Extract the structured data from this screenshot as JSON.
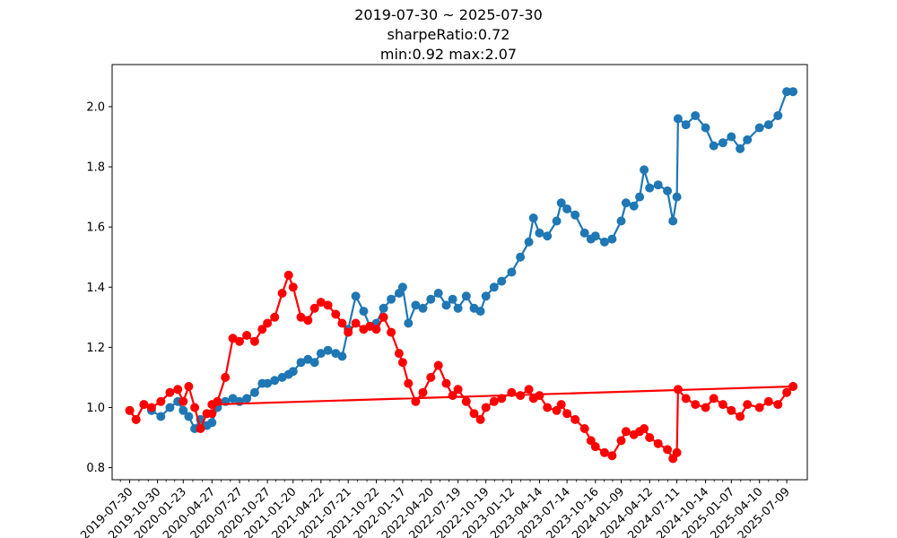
{
  "chart_data": {
    "type": "line",
    "title": "2019-07-30 ~ 2025-07-30",
    "subtitle_lines": [
      "sharpeRatio:0.72",
      "min:0.92 max:2.07"
    ],
    "xlabel": "",
    "ylabel": "",
    "x_type": "date",
    "xlim": [
      "2019-06-02",
      "2025-09-15"
    ],
    "ylim": [
      0.76,
      2.14
    ],
    "grid": false,
    "x_tick_labels": [
      "2019-07-30",
      "2019-10-30",
      "2020-01-23",
      "2020-04-27",
      "2020-07-27",
      "2020-10-27",
      "2021-01-20",
      "2021-04-22",
      "2021-07-21",
      "2021-10-22",
      "2022-01-17",
      "2022-04-20",
      "2022-07-19",
      "2022-10-19",
      "2023-01-12",
      "2023-04-14",
      "2023-07-14",
      "2023-10-16",
      "2024-01-09",
      "2024-04-12",
      "2024-07-11",
      "2024-10-14",
      "2025-01-07",
      "2025-04-10",
      "2025-07-09"
    ],
    "y_ticks": [
      0.8,
      1.0,
      1.2,
      1.4,
      1.6,
      1.8,
      2.0
    ],
    "y_tick_labels": [
      "0.8",
      "1.0",
      "1.2",
      "1.4",
      "1.6",
      "1.8",
      "2.0"
    ],
    "series": [
      {
        "color": "#1f77b4",
        "marker": "circle",
        "points": [
          [
            "2019-07-30",
            0.99
          ],
          [
            "2019-08-20",
            0.96
          ],
          [
            "2019-09-15",
            1.01
          ],
          [
            "2019-10-10",
            0.99
          ],
          [
            "2019-11-10",
            0.97
          ],
          [
            "2019-12-10",
            1.0
          ],
          [
            "2020-01-05",
            1.02
          ],
          [
            "2020-01-23",
            0.99
          ],
          [
            "2020-02-10",
            0.97
          ],
          [
            "2020-03-01",
            0.93
          ],
          [
            "2020-03-20",
            0.96
          ],
          [
            "2020-04-10",
            0.94
          ],
          [
            "2020-04-27",
            0.95
          ],
          [
            "2020-05-15",
            1.0
          ],
          [
            "2020-06-10",
            1.02
          ],
          [
            "2020-07-05",
            1.03
          ],
          [
            "2020-07-27",
            1.02
          ],
          [
            "2020-08-20",
            1.03
          ],
          [
            "2020-09-15",
            1.05
          ],
          [
            "2020-10-10",
            1.08
          ],
          [
            "2020-10-27",
            1.08
          ],
          [
            "2020-11-20",
            1.09
          ],
          [
            "2020-12-15",
            1.1
          ],
          [
            "2021-01-05",
            1.11
          ],
          [
            "2021-01-20",
            1.12
          ],
          [
            "2021-02-15",
            1.15
          ],
          [
            "2021-03-10",
            1.16
          ],
          [
            "2021-04-01",
            1.15
          ],
          [
            "2021-04-22",
            1.18
          ],
          [
            "2021-05-15",
            1.19
          ],
          [
            "2021-06-10",
            1.18
          ],
          [
            "2021-07-01",
            1.17
          ],
          [
            "2021-07-21",
            1.26
          ],
          [
            "2021-08-15",
            1.37
          ],
          [
            "2021-09-10",
            1.32
          ],
          [
            "2021-10-01",
            1.27
          ],
          [
            "2021-10-22",
            1.28
          ],
          [
            "2021-11-15",
            1.33
          ],
          [
            "2021-12-10",
            1.36
          ],
          [
            "2022-01-05",
            1.38
          ],
          [
            "2022-01-17",
            1.4
          ],
          [
            "2022-02-05",
            1.28
          ],
          [
            "2022-03-01",
            1.34
          ],
          [
            "2022-03-25",
            1.33
          ],
          [
            "2022-04-20",
            1.36
          ],
          [
            "2022-05-15",
            1.38
          ],
          [
            "2022-06-10",
            1.34
          ],
          [
            "2022-07-01",
            1.36
          ],
          [
            "2022-07-19",
            1.33
          ],
          [
            "2022-08-15",
            1.37
          ],
          [
            "2022-09-10",
            1.33
          ],
          [
            "2022-10-01",
            1.32
          ],
          [
            "2022-10-19",
            1.37
          ],
          [
            "2022-11-15",
            1.4
          ],
          [
            "2022-12-10",
            1.42
          ],
          [
            "2023-01-12",
            1.45
          ],
          [
            "2023-02-10",
            1.5
          ],
          [
            "2023-03-10",
            1.55
          ],
          [
            "2023-03-25",
            1.63
          ],
          [
            "2023-04-14",
            1.58
          ],
          [
            "2023-05-10",
            1.57
          ],
          [
            "2023-06-10",
            1.62
          ],
          [
            "2023-06-25",
            1.68
          ],
          [
            "2023-07-14",
            1.66
          ],
          [
            "2023-08-10",
            1.64
          ],
          [
            "2023-09-10",
            1.58
          ],
          [
            "2023-10-01",
            1.56
          ],
          [
            "2023-10-16",
            1.57
          ],
          [
            "2023-11-15",
            1.55
          ],
          [
            "2023-12-10",
            1.56
          ],
          [
            "2024-01-09",
            1.62
          ],
          [
            "2024-01-25",
            1.68
          ],
          [
            "2024-02-20",
            1.67
          ],
          [
            "2024-03-10",
            1.7
          ],
          [
            "2024-03-25",
            1.79
          ],
          [
            "2024-04-12",
            1.73
          ],
          [
            "2024-05-10",
            1.74
          ],
          [
            "2024-06-10",
            1.72
          ],
          [
            "2024-06-28",
            1.62
          ],
          [
            "2024-07-11",
            1.7
          ],
          [
            "2024-07-15",
            1.96
          ],
          [
            "2024-08-10",
            1.94
          ],
          [
            "2024-09-10",
            1.97
          ],
          [
            "2024-10-14",
            1.93
          ],
          [
            "2024-11-10",
            1.87
          ],
          [
            "2024-12-10",
            1.88
          ],
          [
            "2025-01-07",
            1.9
          ],
          [
            "2025-02-05",
            1.86
          ],
          [
            "2025-03-01",
            1.89
          ],
          [
            "2025-04-10",
            1.93
          ],
          [
            "2025-05-10",
            1.94
          ],
          [
            "2025-06-10",
            1.97
          ],
          [
            "2025-07-09",
            2.05
          ],
          [
            "2025-07-30",
            2.05
          ]
        ]
      },
      {
        "color": "#ff0000",
        "marker": "circle",
        "points": [
          [
            "2019-07-30",
            0.99
          ],
          [
            "2019-08-20",
            0.96
          ],
          [
            "2019-09-15",
            1.01
          ],
          [
            "2019-10-10",
            1.0
          ],
          [
            "2019-11-10",
            1.02
          ],
          [
            "2019-12-10",
            1.05
          ],
          [
            "2020-01-05",
            1.06
          ],
          [
            "2020-01-23",
            1.02
          ],
          [
            "2020-02-10",
            1.07
          ],
          [
            "2020-03-01",
            1.0
          ],
          [
            "2020-03-20",
            0.93
          ],
          [
            "2020-04-10",
            0.98
          ],
          [
            "2020-04-27",
            0.98
          ],
          [
            "2020-05-15",
            1.02
          ],
          [
            "2020-06-10",
            1.1
          ],
          [
            "2020-07-05",
            1.23
          ],
          [
            "2020-07-27",
            1.22
          ],
          [
            "2020-08-20",
            1.24
          ],
          [
            "2020-09-15",
            1.22
          ],
          [
            "2020-10-10",
            1.26
          ],
          [
            "2020-10-27",
            1.28
          ],
          [
            "2020-11-20",
            1.3
          ],
          [
            "2020-12-15",
            1.38
          ],
          [
            "2021-01-05",
            1.44
          ],
          [
            "2021-01-20",
            1.4
          ],
          [
            "2021-02-15",
            1.3
          ],
          [
            "2021-03-10",
            1.29
          ],
          [
            "2021-04-01",
            1.33
          ],
          [
            "2021-04-22",
            1.35
          ],
          [
            "2021-05-15",
            1.34
          ],
          [
            "2021-06-10",
            1.31
          ],
          [
            "2021-07-01",
            1.28
          ],
          [
            "2021-07-21",
            1.25
          ],
          [
            "2021-08-15",
            1.28
          ],
          [
            "2021-09-10",
            1.26
          ],
          [
            "2021-10-01",
            1.27
          ],
          [
            "2021-10-22",
            1.26
          ],
          [
            "2021-11-15",
            1.3
          ],
          [
            "2021-12-10",
            1.25
          ],
          [
            "2022-01-05",
            1.18
          ],
          [
            "2022-01-17",
            1.15
          ],
          [
            "2022-02-05",
            1.08
          ],
          [
            "2022-03-01",
            1.02
          ],
          [
            "2022-03-25",
            1.05
          ],
          [
            "2022-04-20",
            1.1
          ],
          [
            "2022-05-15",
            1.14
          ],
          [
            "2022-06-10",
            1.08
          ],
          [
            "2022-07-01",
            1.04
          ],
          [
            "2022-07-19",
            1.06
          ],
          [
            "2022-08-15",
            1.02
          ],
          [
            "2022-09-10",
            0.98
          ],
          [
            "2022-10-01",
            0.96
          ],
          [
            "2022-10-19",
            1.0
          ],
          [
            "2022-11-15",
            1.02
          ],
          [
            "2022-12-10",
            1.03
          ],
          [
            "2023-01-12",
            1.05
          ],
          [
            "2023-02-10",
            1.04
          ],
          [
            "2023-03-10",
            1.06
          ],
          [
            "2023-03-25",
            1.03
          ],
          [
            "2023-04-14",
            1.04
          ],
          [
            "2023-05-10",
            1.0
          ],
          [
            "2023-06-10",
            0.99
          ],
          [
            "2023-06-25",
            1.01
          ],
          [
            "2023-07-14",
            0.98
          ],
          [
            "2023-08-10",
            0.96
          ],
          [
            "2023-09-10",
            0.93
          ],
          [
            "2023-10-01",
            0.89
          ],
          [
            "2023-10-16",
            0.87
          ],
          [
            "2023-11-15",
            0.85
          ],
          [
            "2023-12-10",
            0.84
          ],
          [
            "2024-01-09",
            0.89
          ],
          [
            "2024-01-25",
            0.92
          ],
          [
            "2024-02-20",
            0.91
          ],
          [
            "2024-03-10",
            0.92
          ],
          [
            "2024-03-25",
            0.93
          ],
          [
            "2024-04-12",
            0.9
          ],
          [
            "2024-05-10",
            0.88
          ],
          [
            "2024-06-10",
            0.86
          ],
          [
            "2024-06-28",
            0.83
          ],
          [
            "2024-07-11",
            0.85
          ],
          [
            "2024-07-15",
            1.06
          ],
          [
            "2024-08-10",
            1.03
          ],
          [
            "2024-09-10",
            1.01
          ],
          [
            "2024-10-14",
            1.0
          ],
          [
            "2024-11-10",
            1.03
          ],
          [
            "2024-12-10",
            1.01
          ],
          [
            "2025-01-07",
            0.99
          ],
          [
            "2025-02-05",
            0.97
          ],
          [
            "2025-03-01",
            1.01
          ],
          [
            "2025-04-10",
            1.0
          ],
          [
            "2025-05-10",
            1.02
          ],
          [
            "2025-06-10",
            1.01
          ],
          [
            "2025-07-09",
            1.05
          ],
          [
            "2025-07-30",
            1.07
          ],
          [
            "2020-04-27",
            1.01
          ],
          [
            "2025-07-30",
            1.07
          ]
        ]
      }
    ]
  }
}
